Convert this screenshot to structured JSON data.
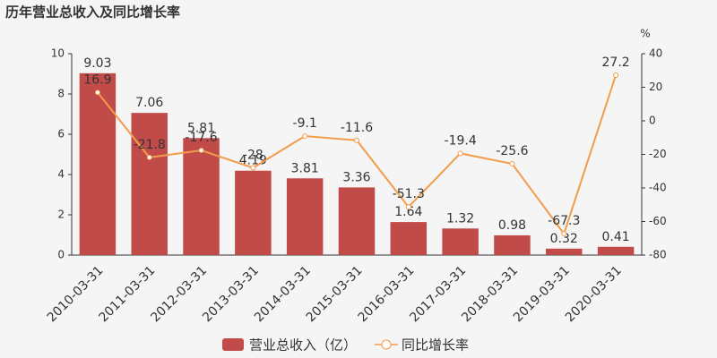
{
  "chart_data": {
    "type": "bar",
    "title": "历年营业总收入及同比增长率",
    "y2_label": "%",
    "categories": [
      "2010-03-31",
      "2011-03-31",
      "2012-03-31",
      "2013-03-31",
      "2014-03-31",
      "2015-03-31",
      "2016-03-31",
      "2017-03-31",
      "2018-03-31",
      "2019-03-31",
      "2020-03-31"
    ],
    "series": [
      {
        "name": "营业总收入（亿）",
        "type": "bar",
        "color": "#c14b49",
        "values": [
          9.03,
          7.06,
          5.81,
          4.19,
          3.81,
          3.36,
          1.64,
          1.32,
          0.98,
          0.32,
          0.41
        ]
      },
      {
        "name": "同比增长率",
        "type": "line",
        "axis": "y2",
        "color": "#f39c4b",
        "values": [
          16.9,
          -21.8,
          -17.6,
          -28,
          -9.1,
          -11.6,
          -51.3,
          -19.4,
          -25.6,
          -67.3,
          27.2
        ]
      }
    ],
    "ylim": [
      0,
      10
    ],
    "yticks": [
      0,
      2,
      4,
      6,
      8,
      10
    ],
    "y2lim": [
      -80,
      40
    ],
    "y2ticks": [
      -80,
      -60,
      -40,
      -20,
      0,
      20,
      40
    ]
  }
}
